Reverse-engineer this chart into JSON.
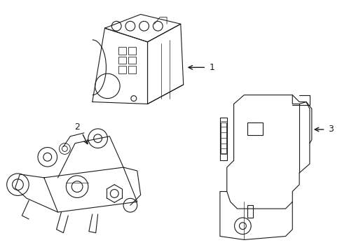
{
  "background_color": "#ffffff",
  "line_color": "#1a1a1a",
  "line_width": 0.8,
  "label_fontsize": 9,
  "figsize": [
    4.89,
    3.6
  ],
  "dpi": 100
}
